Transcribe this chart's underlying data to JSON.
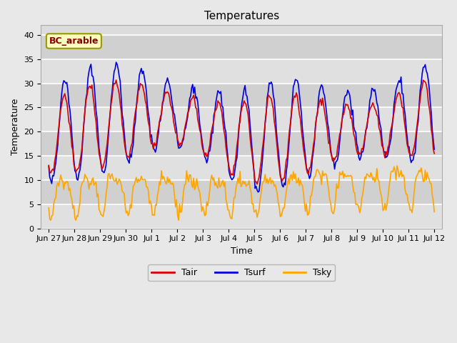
{
  "title": "Temperatures",
  "xlabel": "Time",
  "ylabel": "Temperature",
  "ylim": [
    0,
    42
  ],
  "background_color": "#e8e8e8",
  "plot_bg_color": "#dcdcdc",
  "legend_label": "BC_arable",
  "legend_text_color": "#8b0000",
  "legend_box_facecolor": "#ffffc0",
  "legend_box_edgecolor": "#999900",
  "line_colors": {
    "Tair": "#dd0000",
    "Tsurf": "#0000dd",
    "Tsky": "#ffa500"
  },
  "tick_labels": [
    "Jun 27",
    "Jun 28",
    "Jun 29",
    "Jun 30",
    "Jul 1",
    "Jul 2",
    "Jul 3",
    "Jul 4",
    "Jul 5",
    "Jul 6",
    "Jul 7",
    "Jul 8",
    "Jul 9",
    "Jul 10",
    "Jul 11",
    "Jul 12"
  ],
  "tick_positions": [
    0,
    1,
    2,
    3,
    4,
    5,
    6,
    7,
    8,
    9,
    10,
    11,
    12,
    13,
    14,
    15
  ],
  "yticks": [
    0,
    5,
    10,
    15,
    20,
    25,
    30,
    35,
    40
  ],
  "stripe_colors": [
    "#e0e0e0",
    "#d0d0d0"
  ]
}
